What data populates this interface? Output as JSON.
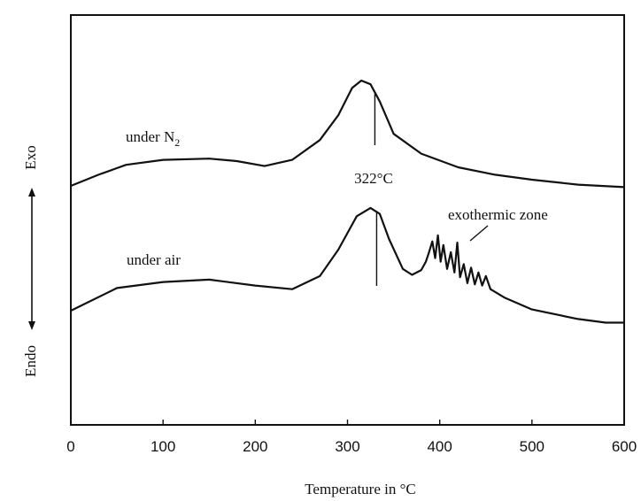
{
  "chart_data": {
    "type": "line",
    "title": "",
    "xlabel": "Temperature in °C",
    "ylabel_top": "Exo",
    "ylabel_bottom": "Endo",
    "xlim": [
      0,
      600
    ],
    "xticks": [
      0,
      100,
      200,
      300,
      400,
      500,
      600
    ],
    "y_units": "relative heat flow (no scale shown)",
    "grid": false,
    "series": [
      {
        "name": "under N2",
        "label_main": "under N",
        "label_sub": "2",
        "x": [
          0,
          30,
          60,
          100,
          150,
          180,
          210,
          240,
          270,
          290,
          305,
          315,
          325,
          335,
          350,
          380,
          420,
          460,
          500,
          550,
          600
        ],
        "y": [
          0,
          0.9,
          1.7,
          2.1,
          2.2,
          2.0,
          1.6,
          2.1,
          3.7,
          5.7,
          7.9,
          8.5,
          8.2,
          6.8,
          4.2,
          2.6,
          1.5,
          0.9,
          0.5,
          0.1,
          -0.1
        ]
      },
      {
        "name": "under air",
        "label_main": "under air",
        "label_sub": "",
        "x": [
          0,
          50,
          100,
          150,
          200,
          240,
          270,
          290,
          310,
          325,
          335,
          345,
          360,
          370,
          380,
          385,
          388,
          392,
          395,
          398,
          401,
          404,
          408,
          412,
          416,
          419,
          422,
          426,
          430,
          434,
          438,
          442,
          446,
          450,
          455,
          470,
          500,
          550,
          580,
          600
        ],
        "y": [
          0,
          1.9,
          2.4,
          2.6,
          2.1,
          1.8,
          2.9,
          5.1,
          7.9,
          8.6,
          8.1,
          6.0,
          3.5,
          3.0,
          3.4,
          4.1,
          4.8,
          5.8,
          4.4,
          6.3,
          4.1,
          5.5,
          3.5,
          4.9,
          3.2,
          5.7,
          2.8,
          3.9,
          2.3,
          3.6,
          2.2,
          3.2,
          2.1,
          2.9,
          1.8,
          1.1,
          0.1,
          -0.7,
          -1.0,
          -1.0
        ]
      }
    ],
    "annotations": [
      {
        "text": "322°C",
        "x": 322
      },
      {
        "text": "exothermic zone",
        "x": 435
      }
    ]
  }
}
